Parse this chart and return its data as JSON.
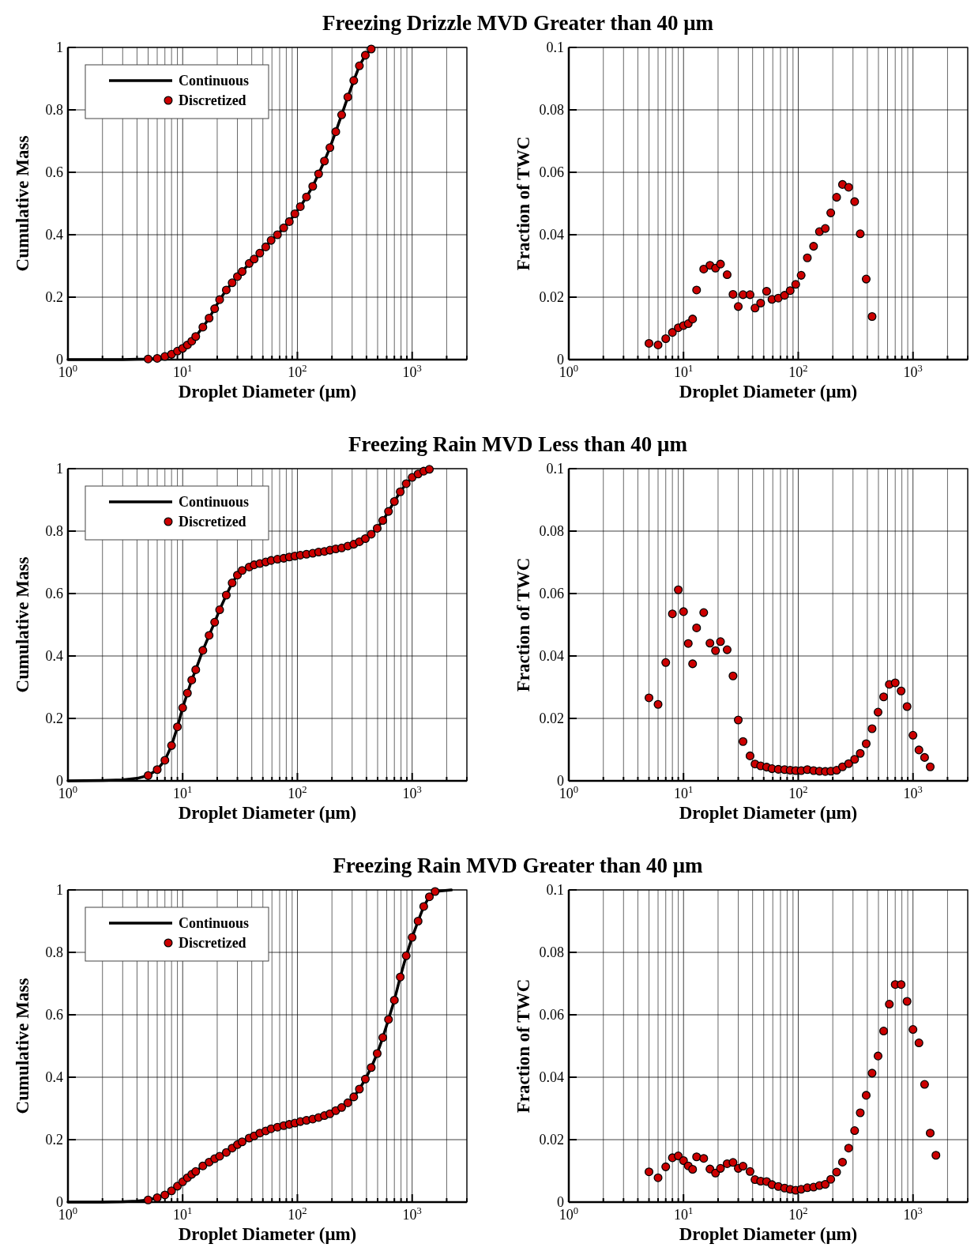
{
  "chart_data": [
    {
      "type": "line",
      "title": "Freezing Drizzle MVD Greater than 40 μm",
      "xlabel": "Droplet Diameter (μm)",
      "ylabel": "Cumulative Mass",
      "log": "x",
      "grid": true,
      "legend": "top left",
      "xlim": [
        1,
        3000
      ],
      "ylim": [
        0,
        1
      ],
      "xticks": [
        {
          "value": 1,
          "label": "10$^{0}$"
        },
        {
          "value": 2,
          "label": null
        },
        {
          "value": 3,
          "label": null
        },
        {
          "value": 4,
          "label": null
        },
        {
          "value": 5,
          "label": null
        },
        {
          "value": 6,
          "label": null
        },
        {
          "value": 7,
          "label": null
        },
        {
          "value": 8,
          "label": null
        },
        {
          "value": 9,
          "label": null
        },
        {
          "value": 10,
          "label": "10$^{1}$"
        },
        {
          "value": 20,
          "label": null
        },
        {
          "value": 30,
          "label": null
        },
        {
          "value": 40,
          "label": null
        },
        {
          "value": 50,
          "label": null
        },
        {
          "value": 60,
          "label": null
        },
        {
          "value": 70,
          "label": null
        },
        {
          "value": 80,
          "label": null
        },
        {
          "value": 90,
          "label": null
        },
        {
          "value": 100,
          "label": "10$^{2}$"
        },
        {
          "value": 200,
          "label": null
        },
        {
          "value": 300,
          "label": null
        },
        {
          "value": 400,
          "label": null
        },
        {
          "value": 500,
          "label": null
        },
        {
          "value": 600,
          "label": null
        },
        {
          "value": 700,
          "label": null
        },
        {
          "value": 800,
          "label": null
        },
        {
          "value": 900,
          "label": null
        },
        {
          "value": 1000,
          "label": "10$^{3}$"
        },
        {
          "value": 2000,
          "label": null
        },
        {
          "value": 3000,
          "label": null
        }
      ],
      "yticks": [
        0,
        0.2,
        0.4,
        0.6,
        0.8,
        1
      ],
      "series": [
        {
          "name": "Continuous",
          "color": "#000000",
          "x": [
            1,
            2,
            3,
            4,
            5,
            6,
            7,
            8,
            9,
            10,
            11,
            12,
            13,
            15,
            17,
            19,
            21,
            24,
            27,
            30,
            33,
            38,
            42,
            47,
            53,
            59,
            67,
            76,
            85,
            95,
            106,
            120,
            136,
            153,
            172,
            192,
            216,
            243,
            275,
            310,
            347,
            391,
            440
          ],
          "values": [
            0,
            0,
            0,
            0.001,
            0.002,
            0.004,
            0.01,
            0.017,
            0.027,
            0.036,
            0.047,
            0.059,
            0.074,
            0.104,
            0.133,
            0.163,
            0.192,
            0.223,
            0.246,
            0.266,
            0.282,
            0.308,
            0.322,
            0.341,
            0.361,
            0.382,
            0.4,
            0.422,
            0.442,
            0.467,
            0.49,
            0.521,
            0.555,
            0.595,
            0.636,
            0.679,
            0.73,
            0.784,
            0.841,
            0.894,
            0.941,
            0.975,
            0.995
          ]
        },
        {
          "name": "Discretized",
          "type": "scatter",
          "marker": "circle",
          "color": "#cc0000",
          "x": [
            5,
            6,
            7,
            8,
            9,
            10,
            11,
            12,
            13,
            15,
            17,
            19,
            21,
            24,
            27,
            30,
            33,
            38,
            42,
            47,
            53,
            59,
            67,
            76,
            85,
            95,
            106,
            120,
            136,
            153,
            172,
            192,
            216,
            243,
            275,
            310,
            347,
            391,
            440
          ],
          "values": [
            0.002,
            0.004,
            0.01,
            0.017,
            0.027,
            0.036,
            0.047,
            0.059,
            0.074,
            0.104,
            0.133,
            0.163,
            0.192,
            0.223,
            0.246,
            0.266,
            0.282,
            0.308,
            0.322,
            0.341,
            0.361,
            0.382,
            0.4,
            0.422,
            0.442,
            0.467,
            0.49,
            0.521,
            0.555,
            0.595,
            0.636,
            0.679,
            0.73,
            0.784,
            0.841,
            0.894,
            0.941,
            0.975,
            0.995
          ]
        }
      ]
    },
    {
      "type": "scatter",
      "xlabel": "Droplet Diameter (μm)",
      "ylabel": "Fraction of TWC",
      "log": "x",
      "grid": true,
      "xlim": [
        1,
        3000
      ],
      "ylim": [
        0,
        0.1
      ],
      "xticks": [
        {
          "value": 1,
          "label": "10$^{0}$"
        },
        {
          "value": 2,
          "label": null
        },
        {
          "value": 3,
          "label": null
        },
        {
          "value": 4,
          "label": null
        },
        {
          "value": 5,
          "label": null
        },
        {
          "value": 6,
          "label": null
        },
        {
          "value": 7,
          "label": null
        },
        {
          "value": 8,
          "label": null
        },
        {
          "value": 9,
          "label": null
        },
        {
          "value": 10,
          "label": "10$^{1}$"
        },
        {
          "value": 20,
          "label": null
        },
        {
          "value": 30,
          "label": null
        },
        {
          "value": 40,
          "label": null
        },
        {
          "value": 50,
          "label": null
        },
        {
          "value": 60,
          "label": null
        },
        {
          "value": 70,
          "label": null
        },
        {
          "value": 80,
          "label": null
        },
        {
          "value": 90,
          "label": null
        },
        {
          "value": 100,
          "label": "10$^{2}$"
        },
        {
          "value": 200,
          "label": null
        },
        {
          "value": 300,
          "label": null
        },
        {
          "value": 400,
          "label": null
        },
        {
          "value": 500,
          "label": null
        },
        {
          "value": 600,
          "label": null
        },
        {
          "value": 700,
          "label": null
        },
        {
          "value": 800,
          "label": null
        },
        {
          "value": 900,
          "label": null
        },
        {
          "value": 1000,
          "label": "10$^{3}$"
        },
        {
          "value": 2000,
          "label": null
        },
        {
          "value": 3000,
          "label": null
        }
      ],
      "yticks": [
        0,
        0.02,
        0.04,
        0.06,
        0.08,
        0.1
      ],
      "series": [
        {
          "marker": "circle",
          "color": "#cc0000",
          "x": [
            5,
            6,
            7,
            8,
            9,
            10,
            11,
            12,
            13,
            15,
            17,
            19,
            21,
            24,
            27,
            30,
            33,
            38,
            42,
            47,
            53,
            59,
            67,
            76,
            85,
            95,
            106,
            120,
            136,
            153,
            172,
            192,
            216,
            243,
            275,
            310,
            347,
            391,
            440
          ],
          "values": [
            0.0052,
            0.0047,
            0.0067,
            0.0087,
            0.0102,
            0.0109,
            0.0115,
            0.013,
            0.0223,
            0.029,
            0.0302,
            0.0293,
            0.0306,
            0.0272,
            0.0209,
            0.017,
            0.0208,
            0.0208,
            0.0165,
            0.0181,
            0.0219,
            0.0193,
            0.0197,
            0.0206,
            0.0221,
            0.0241,
            0.027,
            0.0326,
            0.0363,
            0.041,
            0.042,
            0.047,
            0.052,
            0.0561,
            0.0552,
            0.0506,
            0.0403,
            0.0258,
            0.0138
          ]
        }
      ]
    },
    {
      "type": "line",
      "title": "Freezing Rain MVD Less than 40 μm",
      "xlabel": "Droplet Diameter (μm)",
      "ylabel": "Cumulative Mass",
      "log": "x",
      "grid": true,
      "legend": "top left",
      "xlim": [
        1,
        3000
      ],
      "ylim": [
        0,
        1
      ],
      "xticks": [
        {
          "value": 1,
          "label": "10$^{0}$"
        },
        {
          "value": 2,
          "label": null
        },
        {
          "value": 3,
          "label": null
        },
        {
          "value": 4,
          "label": null
        },
        {
          "value": 5,
          "label": null
        },
        {
          "value": 6,
          "label": null
        },
        {
          "value": 7,
          "label": null
        },
        {
          "value": 8,
          "label": null
        },
        {
          "value": 9,
          "label": null
        },
        {
          "value": 10,
          "label": "10$^{1}$"
        },
        {
          "value": 20,
          "label": null
        },
        {
          "value": 30,
          "label": null
        },
        {
          "value": 40,
          "label": null
        },
        {
          "value": 50,
          "label": null
        },
        {
          "value": 60,
          "label": null
        },
        {
          "value": 70,
          "label": null
        },
        {
          "value": 80,
          "label": null
        },
        {
          "value": 90,
          "label": null
        },
        {
          "value": 100,
          "label": "10$^{2}$"
        },
        {
          "value": 200,
          "label": null
        },
        {
          "value": 300,
          "label": null
        },
        {
          "value": 400,
          "label": null
        },
        {
          "value": 500,
          "label": null
        },
        {
          "value": 600,
          "label": null
        },
        {
          "value": 700,
          "label": null
        },
        {
          "value": 800,
          "label": null
        },
        {
          "value": 900,
          "label": null
        },
        {
          "value": 1000,
          "label": "10$^{3}$"
        },
        {
          "value": 2000,
          "label": null
        },
        {
          "value": 3000,
          "label": null
        }
      ],
      "yticks": [
        0,
        0.2,
        0.4,
        0.6,
        0.8,
        1
      ],
      "series": [
        {
          "name": "Continuous",
          "color": "#000000",
          "x": [
            1,
            2,
            3,
            4,
            5,
            6,
            7,
            8,
            9,
            10,
            11,
            12,
            13,
            15,
            17,
            19,
            21,
            24,
            27,
            30,
            33,
            38,
            42,
            47,
            53,
            59,
            67,
            76,
            85,
            95,
            106,
            120,
            136,
            153,
            172,
            192,
            216,
            243,
            275,
            310,
            347,
            391,
            440,
            496,
            555,
            622,
            700,
            788,
            888,
            1000,
            1127,
            1262,
            1413
          ],
          "values": [
            0,
            0.001,
            0.003,
            0.008,
            0.017,
            0.036,
            0.066,
            0.113,
            0.173,
            0.234,
            0.281,
            0.323,
            0.356,
            0.418,
            0.466,
            0.508,
            0.548,
            0.595,
            0.634,
            0.659,
            0.674,
            0.685,
            0.692,
            0.696,
            0.701,
            0.706,
            0.71,
            0.713,
            0.717,
            0.72,
            0.723,
            0.726,
            0.729,
            0.733,
            0.735,
            0.739,
            0.743,
            0.746,
            0.752,
            0.758,
            0.766,
            0.776,
            0.79,
            0.809,
            0.834,
            0.863,
            0.895,
            0.926,
            0.952,
            0.972,
            0.983,
            0.992,
            0.998
          ]
        },
        {
          "name": "Discretized",
          "type": "scatter",
          "marker": "circle",
          "color": "#cc0000",
          "x": [
            5,
            6,
            7,
            8,
            9,
            10,
            11,
            12,
            13,
            15,
            17,
            19,
            21,
            24,
            27,
            30,
            33,
            38,
            42,
            47,
            53,
            59,
            67,
            76,
            85,
            95,
            106,
            120,
            136,
            153,
            172,
            192,
            216,
            243,
            275,
            310,
            347,
            391,
            440,
            496,
            555,
            622,
            700,
            788,
            888,
            1000,
            1127,
            1262,
            1413
          ],
          "values": [
            0.017,
            0.036,
            0.066,
            0.113,
            0.173,
            0.234,
            0.281,
            0.323,
            0.356,
            0.418,
            0.466,
            0.508,
            0.548,
            0.595,
            0.634,
            0.659,
            0.674,
            0.685,
            0.692,
            0.696,
            0.701,
            0.706,
            0.71,
            0.713,
            0.717,
            0.72,
            0.723,
            0.726,
            0.729,
            0.733,
            0.735,
            0.739,
            0.743,
            0.746,
            0.752,
            0.758,
            0.766,
            0.776,
            0.79,
            0.809,
            0.834,
            0.863,
            0.895,
            0.926,
            0.952,
            0.972,
            0.983,
            0.992,
            0.998
          ]
        }
      ]
    },
    {
      "type": "scatter",
      "xlabel": "Droplet Diameter (μm)",
      "ylabel": "Fraction of TWC",
      "log": "x",
      "grid": true,
      "xlim": [
        1,
        3000
      ],
      "ylim": [
        0,
        0.1
      ],
      "xticks": [
        {
          "value": 1,
          "label": "10$^{0}$"
        },
        {
          "value": 2,
          "label": null
        },
        {
          "value": 3,
          "label": null
        },
        {
          "value": 4,
          "label": null
        },
        {
          "value": 5,
          "label": null
        },
        {
          "value": 6,
          "label": null
        },
        {
          "value": 7,
          "label": null
        },
        {
          "value": 8,
          "label": null
        },
        {
          "value": 9,
          "label": null
        },
        {
          "value": 10,
          "label": "10$^{1}$"
        },
        {
          "value": 20,
          "label": null
        },
        {
          "value": 30,
          "label": null
        },
        {
          "value": 40,
          "label": null
        },
        {
          "value": 50,
          "label": null
        },
        {
          "value": 60,
          "label": null
        },
        {
          "value": 70,
          "label": null
        },
        {
          "value": 80,
          "label": null
        },
        {
          "value": 90,
          "label": null
        },
        {
          "value": 100,
          "label": "10$^{2}$"
        },
        {
          "value": 200,
          "label": null
        },
        {
          "value": 300,
          "label": null
        },
        {
          "value": 400,
          "label": null
        },
        {
          "value": 500,
          "label": null
        },
        {
          "value": 600,
          "label": null
        },
        {
          "value": 700,
          "label": null
        },
        {
          "value": 800,
          "label": null
        },
        {
          "value": 900,
          "label": null
        },
        {
          "value": 1000,
          "label": "10$^{3}$"
        },
        {
          "value": 2000,
          "label": null
        },
        {
          "value": 3000,
          "label": null
        }
      ],
      "yticks": [
        0,
        0.02,
        0.04,
        0.06,
        0.08,
        0.1
      ],
      "series": [
        {
          "marker": "circle",
          "color": "#cc0000",
          "x": [
            5,
            6,
            7,
            8,
            9,
            10,
            11,
            12,
            13,
            15,
            17,
            19,
            21,
            24,
            27,
            30,
            33,
            38,
            42,
            47,
            53,
            59,
            67,
            76,
            85,
            95,
            106,
            120,
            136,
            153,
            172,
            192,
            216,
            243,
            275,
            310,
            347,
            391,
            440,
            496,
            555,
            622,
            700,
            788,
            888,
            1000,
            1127,
            1262,
            1413
          ],
          "values": [
            0.0266,
            0.0245,
            0.0379,
            0.0535,
            0.0612,
            0.0542,
            0.044,
            0.0375,
            0.049,
            0.0539,
            0.0441,
            0.0417,
            0.0446,
            0.042,
            0.0336,
            0.0195,
            0.0126,
            0.008,
            0.0054,
            0.0048,
            0.0044,
            0.0039,
            0.0037,
            0.0036,
            0.0034,
            0.0033,
            0.0033,
            0.0036,
            0.0033,
            0.0031,
            0.003,
            0.0031,
            0.0034,
            0.0045,
            0.0055,
            0.0069,
            0.0088,
            0.0119,
            0.0167,
            0.022,
            0.0269,
            0.0309,
            0.0314,
            0.0288,
            0.0238,
            0.0146,
            0.0099,
            0.0075,
            0.0045
          ]
        }
      ]
    },
    {
      "type": "line",
      "title": "Freezing Rain MVD Greater than 40 μm",
      "xlabel": "Droplet Diameter (μm)",
      "ylabel": "Cumulative Mass",
      "log": "x",
      "grid": true,
      "legend": "top left",
      "xlim": [
        1,
        3000
      ],
      "ylim": [
        0,
        1
      ],
      "xticks": [
        {
          "value": 1,
          "label": "10$^{0}$"
        },
        {
          "value": 2,
          "label": null
        },
        {
          "value": 3,
          "label": null
        },
        {
          "value": 4,
          "label": null
        },
        {
          "value": 5,
          "label": null
        },
        {
          "value": 6,
          "label": null
        },
        {
          "value": 7,
          "label": null
        },
        {
          "value": 8,
          "label": null
        },
        {
          "value": 9,
          "label": null
        },
        {
          "value": 10,
          "label": "10$^{1}$"
        },
        {
          "value": 20,
          "label": null
        },
        {
          "value": 30,
          "label": null
        },
        {
          "value": 40,
          "label": null
        },
        {
          "value": 50,
          "label": null
        },
        {
          "value": 60,
          "label": null
        },
        {
          "value": 70,
          "label": null
        },
        {
          "value": 80,
          "label": null
        },
        {
          "value": 90,
          "label": null
        },
        {
          "value": 100,
          "label": "10$^{2}$"
        },
        {
          "value": 200,
          "label": null
        },
        {
          "value": 300,
          "label": null
        },
        {
          "value": 400,
          "label": null
        },
        {
          "value": 500,
          "label": null
        },
        {
          "value": 600,
          "label": null
        },
        {
          "value": 700,
          "label": null
        },
        {
          "value": 800,
          "label": null
        },
        {
          "value": 900,
          "label": null
        },
        {
          "value": 1000,
          "label": "10$^{3}$"
        },
        {
          "value": 2000,
          "label": null
        },
        {
          "value": 3000,
          "label": null
        }
      ],
      "yticks": [
        0,
        0.2,
        0.4,
        0.6,
        0.8,
        1
      ],
      "series": [
        {
          "name": "Continuous",
          "color": "#000000",
          "x": [
            1,
            2,
            3,
            4,
            5,
            6,
            7,
            8,
            9,
            10,
            11,
            12,
            13,
            15,
            17,
            19,
            21,
            24,
            27,
            30,
            33,
            38,
            42,
            47,
            53,
            59,
            67,
            76,
            85,
            95,
            106,
            120,
            136,
            153,
            172,
            192,
            216,
            243,
            275,
            310,
            347,
            391,
            440,
            496,
            555,
            622,
            700,
            788,
            888,
            1000,
            1127,
            1262,
            1413,
            1585,
            2200
          ],
          "values": [
            0,
            0,
            0.001,
            0.003,
            0.007,
            0.014,
            0.023,
            0.036,
            0.051,
            0.065,
            0.078,
            0.089,
            0.098,
            0.116,
            0.128,
            0.139,
            0.147,
            0.159,
            0.173,
            0.184,
            0.193,
            0.205,
            0.212,
            0.221,
            0.228,
            0.235,
            0.24,
            0.245,
            0.249,
            0.253,
            0.258,
            0.262,
            0.266,
            0.271,
            0.277,
            0.283,
            0.293,
            0.303,
            0.318,
            0.337,
            0.362,
            0.394,
            0.431,
            0.476,
            0.527,
            0.585,
            0.647,
            0.721,
            0.789,
            0.848,
            0.9,
            0.947,
            0.978,
            0.995,
            1
          ]
        },
        {
          "name": "Discretized",
          "type": "scatter",
          "marker": "circle",
          "color": "#cc0000",
          "x": [
            5,
            6,
            7,
            8,
            9,
            10,
            11,
            12,
            13,
            15,
            17,
            19,
            21,
            24,
            27,
            30,
            33,
            38,
            42,
            47,
            53,
            59,
            67,
            76,
            85,
            95,
            106,
            120,
            136,
            153,
            172,
            192,
            216,
            243,
            275,
            310,
            347,
            391,
            440,
            496,
            555,
            622,
            700,
            788,
            888,
            1000,
            1127,
            1262,
            1413,
            1585
          ],
          "values": [
            0.007,
            0.014,
            0.023,
            0.036,
            0.051,
            0.065,
            0.078,
            0.089,
            0.098,
            0.116,
            0.128,
            0.139,
            0.147,
            0.159,
            0.173,
            0.184,
            0.193,
            0.205,
            0.212,
            0.221,
            0.228,
            0.235,
            0.24,
            0.245,
            0.249,
            0.253,
            0.258,
            0.262,
            0.266,
            0.271,
            0.277,
            0.283,
            0.293,
            0.303,
            0.318,
            0.337,
            0.362,
            0.394,
            0.431,
            0.476,
            0.527,
            0.585,
            0.647,
            0.721,
            0.789,
            0.848,
            0.9,
            0.947,
            0.978,
            0.995
          ]
        }
      ]
    },
    {
      "type": "scatter",
      "xlabel": "Droplet Diameter (μm)",
      "ylabel": "Fraction of TWC",
      "log": "x",
      "grid": true,
      "xlim": [
        1,
        3000
      ],
      "ylim": [
        0,
        0.1
      ],
      "xticks": [
        {
          "value": 1,
          "label": "10$^{0}$"
        },
        {
          "value": 2,
          "label": null
        },
        {
          "value": 3,
          "label": null
        },
        {
          "value": 4,
          "label": null
        },
        {
          "value": 5,
          "label": null
        },
        {
          "value": 6,
          "label": null
        },
        {
          "value": 7,
          "label": null
        },
        {
          "value": 8,
          "label": null
        },
        {
          "value": 9,
          "label": null
        },
        {
          "value": 10,
          "label": "10$^{1}$"
        },
        {
          "value": 20,
          "label": null
        },
        {
          "value": 30,
          "label": null
        },
        {
          "value": 40,
          "label": null
        },
        {
          "value": 50,
          "label": null
        },
        {
          "value": 60,
          "label": null
        },
        {
          "value": 70,
          "label": null
        },
        {
          "value": 80,
          "label": null
        },
        {
          "value": 90,
          "label": null
        },
        {
          "value": 100,
          "label": "10$^{2}$"
        },
        {
          "value": 200,
          "label": null
        },
        {
          "value": 300,
          "label": null
        },
        {
          "value": 400,
          "label": null
        },
        {
          "value": 500,
          "label": null
        },
        {
          "value": 600,
          "label": null
        },
        {
          "value": 700,
          "label": null
        },
        {
          "value": 800,
          "label": null
        },
        {
          "value": 900,
          "label": null
        },
        {
          "value": 1000,
          "label": "10$^{3}$"
        },
        {
          "value": 2000,
          "label": null
        },
        {
          "value": 3000,
          "label": null
        }
      ],
      "yticks": [
        0,
        0.02,
        0.04,
        0.06,
        0.08,
        0.1
      ],
      "series": [
        {
          "marker": "circle",
          "color": "#cc0000",
          "x": [
            5,
            6,
            7,
            8,
            9,
            10,
            11,
            12,
            13,
            15,
            17,
            19,
            21,
            24,
            27,
            30,
            33,
            38,
            42,
            47,
            53,
            59,
            67,
            76,
            85,
            95,
            106,
            120,
            136,
            153,
            172,
            192,
            216,
            243,
            275,
            310,
            347,
            391,
            440,
            496,
            555,
            622,
            700,
            788,
            888,
            1000,
            1127,
            1262,
            1413,
            1585
          ],
          "values": [
            0.0097,
            0.0078,
            0.0113,
            0.0142,
            0.0148,
            0.0133,
            0.0116,
            0.0105,
            0.0145,
            0.014,
            0.0106,
            0.0093,
            0.0108,
            0.0123,
            0.0127,
            0.0108,
            0.0115,
            0.0098,
            0.0072,
            0.0067,
            0.0066,
            0.0056,
            0.005,
            0.0045,
            0.0041,
            0.0038,
            0.0041,
            0.0046,
            0.0048,
            0.0053,
            0.0057,
            0.0073,
            0.0096,
            0.0128,
            0.0173,
            0.0229,
            0.0286,
            0.0342,
            0.0413,
            0.0468,
            0.0548,
            0.0634,
            0.0697,
            0.0697,
            0.0643,
            0.0553,
            0.051,
            0.0377,
            0.0221,
            0.015
          ]
        }
      ]
    }
  ]
}
